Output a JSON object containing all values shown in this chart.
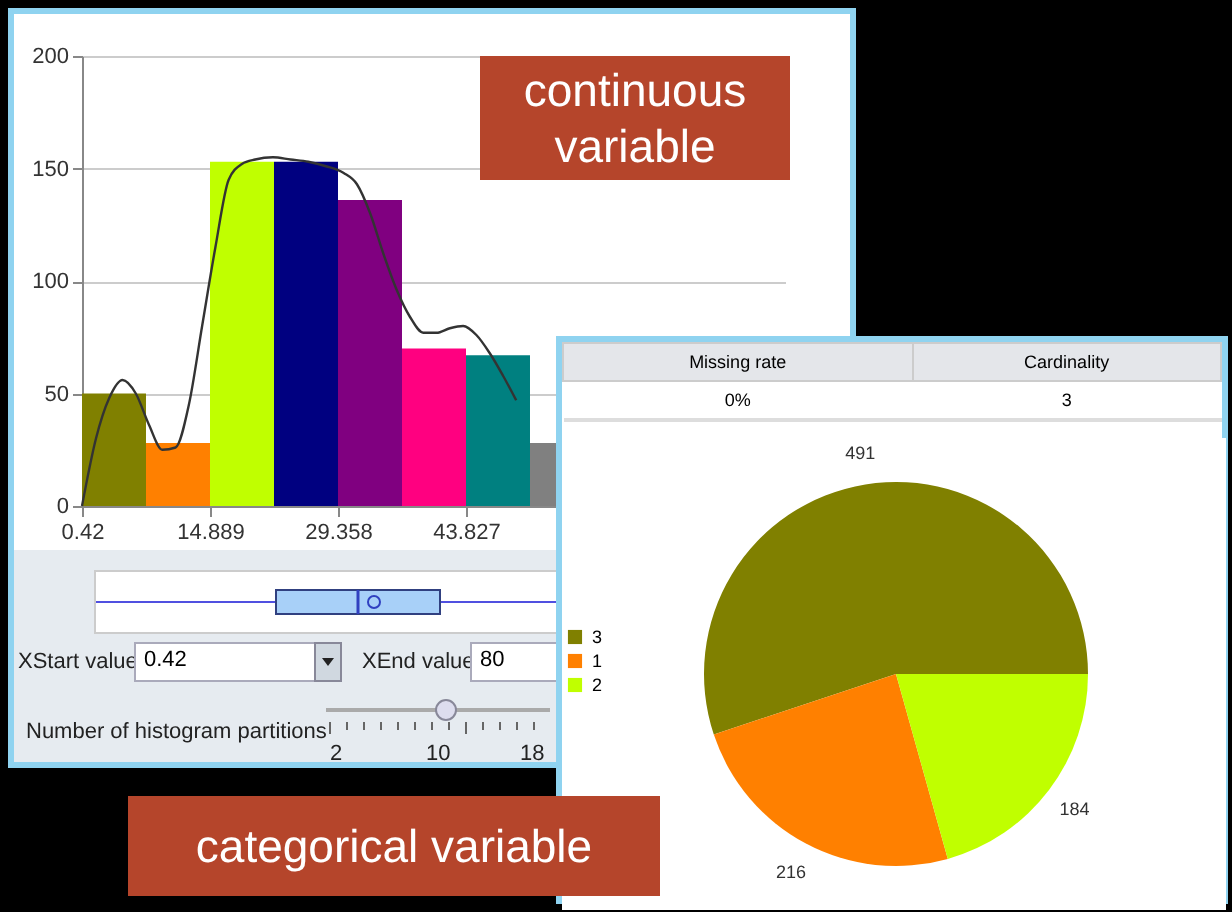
{
  "chart_data": [
    {
      "type": "histogram",
      "bins": [
        0.42,
        7.6545,
        14.889,
        22.1235,
        29.358,
        36.5925,
        43.827,
        51.0615,
        58.296,
        65.5305,
        72.765,
        80
      ],
      "series": [
        {
          "type": "histogram",
          "values": [
            50,
            28,
            153,
            153,
            136,
            70,
            67,
            28,
            null,
            null,
            null
          ],
          "colors": [
            "#808000",
            "#ff8000",
            "#c0ff00",
            "#000080",
            "#800080",
            "#ff0080",
            "#008080",
            "#808080",
            "#808080",
            "#808080",
            "#808080"
          ]
        },
        {
          "type": "line",
          "color": "#333333",
          "x": [
            0.42,
            2,
            3.5,
            5,
            6.5,
            8,
            9.5,
            11,
            12.5,
            14,
            15.5,
            17,
            18.5,
            20,
            22,
            24,
            26,
            28,
            30,
            31.5,
            33,
            34.5,
            36,
            37.5,
            39,
            40.5,
            42,
            43.5,
            45,
            46.5,
            48,
            49.5
          ],
          "values": [
            0,
            30,
            48,
            56,
            50,
            36,
            25,
            26,
            45,
            80,
            115,
            145,
            152,
            154,
            155,
            154,
            153,
            151,
            148,
            143,
            130,
            112,
            96,
            84,
            77,
            77,
            79,
            80,
            76,
            68,
            58,
            47
          ]
        }
      ],
      "xlim": [
        0.42,
        80
      ],
      "xticks": [
        0.42,
        14.889,
        29.358,
        43.827
      ],
      "ylim": [
        0,
        200
      ],
      "yticks": [
        0,
        50,
        100,
        150,
        200
      ],
      "grid": "y",
      "annotations": [
        "continuous variable",
        "XStart value",
        "0.42",
        "XEnd value",
        "80",
        "Number of histogram partitions",
        "2",
        "10",
        "18"
      ]
    },
    {
      "type": "pie",
      "categories": [
        "3",
        "1",
        "2"
      ],
      "values": [
        491,
        216,
        184
      ],
      "colors": [
        "#808000",
        "#ff8000",
        "#c0ff00"
      ],
      "data_labels": true,
      "legend": "left",
      "annotations": [
        "Missing rate",
        "Cardinality",
        "0%",
        "3",
        "categorical variable"
      ]
    }
  ]
}
